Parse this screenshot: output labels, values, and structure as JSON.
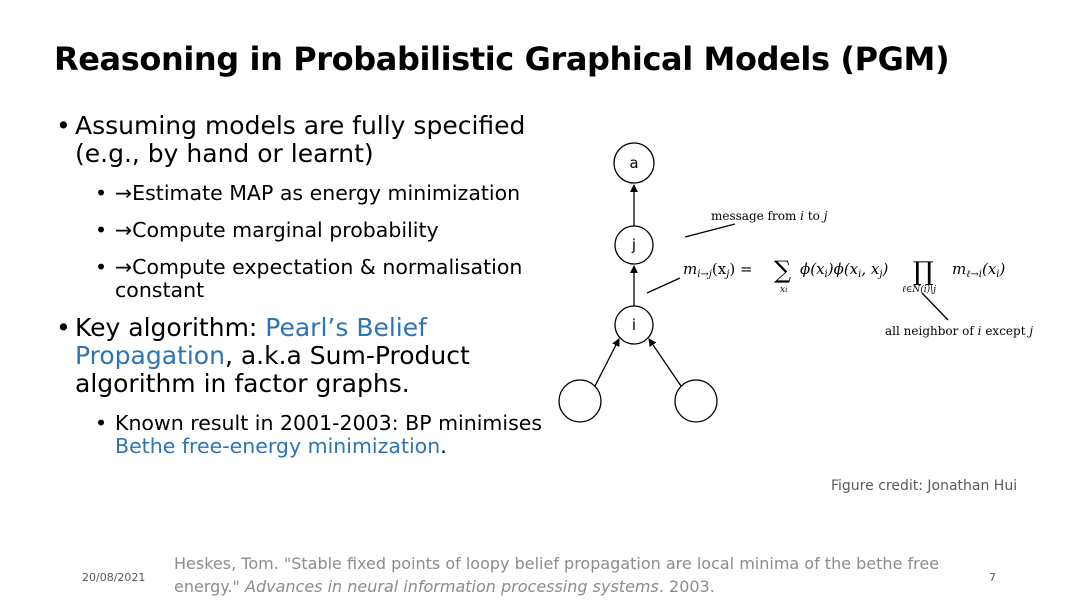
{
  "slide": {
    "title": "Reasoning in Probabilistic Graphical Models (PGM)",
    "bullets": {
      "b1": "Assuming models are fully specified (e.g., by hand or learnt)",
      "b1_1": "→Estimate MAP as energy minimization",
      "b1_2": "→Compute marginal probability",
      "b1_3": "→Compute expectation & normalisation constant",
      "b2_pre": "Key algorithm: ",
      "b2_link": "Pearl’s Belief Propagation",
      "b2_post": ", a.k.a Sum-Product algorithm in factor graphs.",
      "b2_1_pre": "Known result in 2001-2003: BP minimises ",
      "b2_1_link": "Bethe free-energy minimization",
      "b2_1_post": "."
    },
    "figure": {
      "node_a": "a",
      "node_j": "j",
      "node_i": "i",
      "annotation_top_pre": "message from ",
      "annotation_top_i": "i",
      "annotation_top_mid": " to ",
      "annotation_top_j": "j",
      "annotation_bottom_pre": "all neighbor of ",
      "annotation_bottom_i": "i",
      "annotation_bottom_mid": " except ",
      "annotation_bottom_j": "j",
      "formula": {
        "m": "m",
        "sub_m": "i→j",
        "arg": "(x",
        "arg_sub": "j",
        "arg_close": ") =",
        "sum": "∑",
        "sum_sub": "x",
        "sum_sub_i": "i",
        "phi1": "ϕ(x",
        "phi1_sub": "i",
        "phi1_close": ")ϕ(x",
        "phi2_sub1": "i",
        "phi2_mid": ", x",
        "phi2_sub2": "j",
        "phi2_close": ")",
        "prod": "∏",
        "prod_sub": "ℓ∈N(i)\\j",
        "m2": "m",
        "m2_sub": "ℓ→i",
        "m2_arg": "(x",
        "m2_arg_sub": "i",
        "m2_close": ")"
      }
    },
    "credit": "Figure credit: Jonathan Hui",
    "footer": {
      "date": "20/08/2021",
      "ref_pre": "Heskes, Tom. \"Stable fixed points of loopy belief propagation are local minima of the bethe free energy.\" ",
      "ref_italic": "Advances in neural information processing systems",
      "ref_post": ". 2003.",
      "page": "7"
    }
  }
}
